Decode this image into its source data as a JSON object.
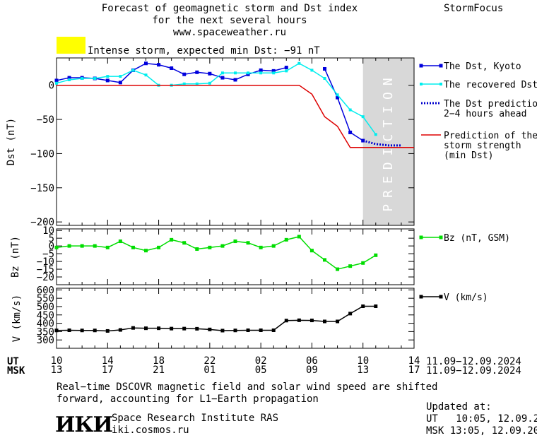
{
  "header": {
    "title_lines": [
      "Forecast of geomagnetic storm and Dst index",
      "for the next several hours",
      "www.spaceweather.ru"
    ],
    "brand": "StormFocus",
    "alert_color": "#ffff00",
    "alert_text": "Intense storm, expected min Dst: −91 nT"
  },
  "footer": {
    "note_lines": [
      "Real−time DSCOVR magnetic field and solar wind speed are shifted",
      "forward, accounting for L1−Earth propagation"
    ],
    "logo_text": "ИКИ",
    "institute": "Space Research Institute RAS",
    "website": "iki.cosmos.ru",
    "updated_label": "Updated at:",
    "updated_ut": "UT   10:05, 12.09.2024",
    "updated_msk": "MSK 13:05, 12.09.2024"
  },
  "time_axis": {
    "ut_label": "UT",
    "msk_label": "MSK",
    "ut_ticks": [
      "10",
      "14",
      "18",
      "22",
      "02",
      "06",
      "10",
      "14"
    ],
    "msk_ticks": [
      "13",
      "17",
      "21",
      "01",
      "05",
      "09",
      "13",
      "17"
    ],
    "ut_range": "11.09−12.09.2024",
    "msk_range": "11.09−12.09.2024"
  },
  "chart_data": [
    {
      "type": "line",
      "id": "dst",
      "ylabel": "Dst (nT)",
      "ylim": [
        -205,
        40
      ],
      "yticks": [
        0,
        -50,
        -100,
        -150,
        -200
      ],
      "ytick_labels": [
        "0",
        "−50",
        "−100",
        "−150",
        "−200"
      ],
      "xlim": [
        0,
        28
      ],
      "grid": false,
      "prediction_label": "PREDICTION",
      "prediction_region": [
        24,
        28
      ],
      "prediction_color": "#d8d8d8",
      "series": [
        {
          "name": "The Dst, Kyoto",
          "color": "#0000dd",
          "x": [
            0,
            1,
            2,
            3,
            4,
            5,
            6,
            7,
            8,
            9,
            10,
            11,
            12,
            13,
            14,
            15,
            16,
            17,
            18,
            19,
            21,
            22,
            23,
            24
          ],
          "y": [
            7,
            11,
            11,
            10,
            7,
            4,
            22,
            32,
            30,
            25,
            16,
            19,
            17,
            11,
            8,
            16,
            22,
            21,
            26,
            null,
            24,
            -18,
            -69,
            -81
          ]
        },
        {
          "name": "The recovered Dst",
          "color": "#00eeee",
          "x": [
            0,
            1,
            2,
            3,
            4,
            5,
            6,
            7,
            8,
            9,
            10,
            11,
            12,
            13,
            14,
            15,
            16,
            17,
            18,
            19,
            20,
            21,
            22,
            23,
            24,
            25
          ],
          "y": [
            3,
            8,
            10,
            10,
            13,
            13,
            22,
            15,
            0,
            0,
            2,
            2,
            3,
            18,
            18,
            18,
            18,
            18,
            21,
            32,
            22,
            10,
            -14,
            -36,
            -46,
            -72
          ]
        },
        {
          "name": "The Dst prediction\n2−4 hours ahead",
          "color": "#0000cc",
          "x": [
            24,
            25,
            26,
            27
          ],
          "y": [
            -81,
            -86,
            -88,
            -88
          ]
        },
        {
          "name": "Prediction of the\nstorm strength\n(min Dst)",
          "color": "#dd0000",
          "x": [
            0,
            19,
            20,
            21,
            22,
            23,
            24,
            25,
            26,
            27,
            28
          ],
          "y": [
            0,
            0,
            -13,
            -46,
            -60,
            -91,
            -91,
            -91,
            -91,
            -91,
            -91
          ]
        }
      ]
    },
    {
      "type": "line",
      "id": "bz",
      "ylabel": "Bz (nT)",
      "ylim": [
        -25,
        11
      ],
      "yticks": [
        10,
        5,
        0,
        -5,
        -10,
        -15,
        -20
      ],
      "ytick_labels": [
        "10",
        "5",
        "0",
        "−5",
        "−10",
        "−15",
        "−20"
      ],
      "xlim": [
        0,
        28
      ],
      "grid": false,
      "series": [
        {
          "name": "Bz (nT, GSM)",
          "color": "#00dd00",
          "x": [
            0,
            1,
            2,
            3,
            4,
            5,
            6,
            7,
            8,
            9,
            10,
            11,
            12,
            13,
            14,
            15,
            16,
            17,
            18,
            19,
            20,
            21,
            22,
            23,
            24,
            25
          ],
          "y": [
            -1,
            0,
            0,
            0,
            -1,
            3,
            -1,
            -3,
            -1,
            4,
            2,
            -2,
            -1,
            0,
            3,
            2,
            -1,
            0,
            4,
            6,
            -3,
            -9,
            -15,
            -13,
            -11,
            -6
          ]
        }
      ]
    },
    {
      "type": "line",
      "id": "v",
      "ylabel": "V (km/s)",
      "ylim": [
        250,
        610
      ],
      "yticks": [
        300,
        350,
        400,
        450,
        500,
        550,
        600
      ],
      "ytick_labels": [
        "300",
        "350",
        "400",
        "450",
        "500",
        "550",
        "600"
      ],
      "xlim": [
        0,
        28
      ],
      "grid": false,
      "series": [
        {
          "name": "V (km/s)",
          "color": "#000000",
          "x": [
            0,
            1,
            2,
            3,
            4,
            5,
            6,
            7,
            8,
            9,
            10,
            11,
            12,
            13,
            14,
            15,
            16,
            17,
            18,
            19,
            20,
            21,
            22,
            23,
            24,
            25
          ],
          "y": [
            357,
            358,
            357,
            357,
            354,
            360,
            372,
            370,
            370,
            368,
            368,
            367,
            363,
            356,
            357,
            358,
            358,
            358,
            416,
            418,
            417,
            411,
            411,
            458,
            502,
            502
          ]
        }
      ]
    }
  ]
}
